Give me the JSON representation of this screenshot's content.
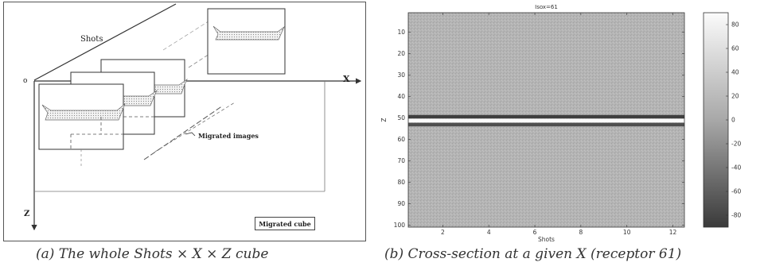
{
  "panel_a": {
    "shots_label": "Shots",
    "origin_label": "o",
    "x_axis_label": "X",
    "z_axis_label": "Z",
    "migrated_images_label": "Migrated images",
    "migrated_cube_label": "Migrated cube",
    "caption": "(a) The whole Shots × X × Z cube"
  },
  "panel_b": {
    "caption": "(b) Cross-section at a given X (receptor 61)"
  },
  "chart_data": {
    "type": "heatmap",
    "title": "Isox=61",
    "xlabel": "Shots",
    "ylabel": "Z",
    "xlim": [
      0.5,
      12.5
    ],
    "ylim": [
      101,
      1
    ],
    "y_inverted": true,
    "x_ticks": [
      2,
      4,
      6,
      8,
      10,
      12
    ],
    "y_ticks": [
      10,
      20,
      30,
      40,
      50,
      60,
      70,
      80,
      90,
      100
    ],
    "colorbar": {
      "range": [
        -90,
        90
      ],
      "ticks": [
        80,
        60,
        40,
        20,
        0,
        -20,
        -40,
        -60,
        -80
      ],
      "colormap": "gray"
    },
    "background_level": 0,
    "reflector_bands": [
      {
        "z": 49.5,
        "level": -85
      },
      {
        "z": 51.3,
        "level": 90
      },
      {
        "z": 53.2,
        "level": -70
      }
    ]
  }
}
